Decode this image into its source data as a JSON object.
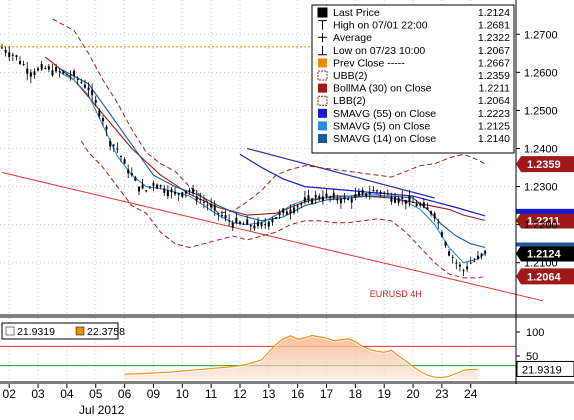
{
  "chart_data": {
    "type": "line",
    "symbol": "EURUSD 4H",
    "x_ticks": [
      "02",
      "03",
      "04",
      "05",
      "06",
      "09",
      "10",
      "11",
      "12",
      "13",
      "16",
      "17",
      "18",
      "19",
      "20",
      "23",
      "24"
    ],
    "x_month_label": "Jul 2012",
    "price_axis": {
      "ticks": [
        "1.2700",
        "1.2600",
        "1.2500",
        "1.2400",
        "1.2300",
        "1.2200",
        "1.2100"
      ],
      "ylim": [
        1.196,
        1.279
      ]
    },
    "osc_axis": {
      "ticks": [
        "100",
        "50"
      ],
      "ylim": [
        0,
        125
      ]
    },
    "legend": [
      {
        "label": "Last Price",
        "value": "1.2124",
        "color": "#000000",
        "icon": "square-icon"
      },
      {
        "label": "High on 07/01 22:00",
        "value": "1.2681",
        "color": "#000000",
        "icon": "high-marker-icon"
      },
      {
        "label": "Average",
        "value": "1.2322",
        "color": "#000000",
        "icon": "average-marker-icon"
      },
      {
        "label": "Low on 07/23 10:00",
        "value": "1.2067",
        "color": "#000000",
        "icon": "low-marker-icon"
      },
      {
        "label": "Prev Close -----",
        "value": "1.2667",
        "color": "#f08c00",
        "icon": "square-icon"
      },
      {
        "label": "UBB(2)",
        "value": "1.2359",
        "color": "#a02020",
        "icon": "dashed-square-icon"
      },
      {
        "label": "BollMA (30) on Close",
        "value": "1.2211",
        "color": "#a01818",
        "icon": "square-icon"
      },
      {
        "label": "LBB(2)",
        "value": "1.2064",
        "color": "#a02020",
        "icon": "dashed-square-icon"
      },
      {
        "label": "SMAVG (55) on Close",
        "value": "1.2223",
        "color": "#1a1ad0",
        "icon": "square-icon"
      },
      {
        "label": "SMAVG (5) on Close",
        "value": "1.2125",
        "color": "#2a8de0",
        "icon": "square-icon"
      },
      {
        "label": "SMAVG (14) on Close",
        "value": "1.2140",
        "color": "#1a5a9a",
        "icon": "square-icon"
      }
    ],
    "price_tags": [
      {
        "value": "1.2359",
        "bg": "#a01818",
        "fg": "#ffffff"
      },
      {
        "value": "1.2211",
        "bg": "#a01818",
        "fg": "#ffffff"
      },
      {
        "value": "1.2124",
        "bg": "#000000",
        "fg": "#ffffff"
      },
      {
        "value": "1.2064",
        "bg": "#a01818",
        "fg": "#ffffff"
      }
    ],
    "osc_legend": [
      {
        "value": "21.9319",
        "color": "#ffffff"
      },
      {
        "value": "22.3758",
        "color": "#f08c00"
      }
    ],
    "osc_tag": "21.9319",
    "prev_close": 1.2667,
    "close_path": [
      [
        0,
        1.2665
      ],
      [
        2,
        1.264
      ],
      [
        4,
        1.26
      ],
      [
        6,
        1.261
      ],
      [
        8,
        1.26
      ],
      [
        10,
        1.259
      ],
      [
        12,
        1.256
      ],
      [
        13,
        1.252
      ],
      [
        14,
        1.248
      ],
      [
        15,
        1.242
      ],
      [
        16,
        1.24
      ],
      [
        17,
        1.236
      ],
      [
        18,
        1.233
      ],
      [
        19,
        1.23
      ],
      [
        20,
        1.229
      ],
      [
        21,
        1.231
      ],
      [
        22,
        1.23
      ],
      [
        24,
        1.228
      ],
      [
        26,
        1.229
      ],
      [
        28,
        1.226
      ],
      [
        30,
        1.223
      ],
      [
        32,
        1.2205
      ],
      [
        34,
        1.22
      ],
      [
        36,
        1.2195
      ],
      [
        38,
        1.222
      ],
      [
        40,
        1.224
      ],
      [
        42,
        1.226
      ],
      [
        44,
        1.2275
      ],
      [
        46,
        1.227
      ],
      [
        48,
        1.2265
      ],
      [
        50,
        1.228
      ],
      [
        52,
        1.229
      ],
      [
        54,
        1.2275
      ],
      [
        56,
        1.2265
      ],
      [
        58,
        1.225
      ],
      [
        60,
        1.223
      ],
      [
        61,
        1.218
      ],
      [
        62,
        1.213
      ],
      [
        63,
        1.21
      ],
      [
        64,
        1.208
      ],
      [
        65,
        1.21
      ],
      [
        66,
        1.211
      ],
      [
        67,
        1.2124
      ]
    ],
    "ubb_path": [
      [
        7,
        1.274
      ],
      [
        10,
        1.271
      ],
      [
        12,
        1.265
      ],
      [
        14,
        1.258
      ],
      [
        16,
        1.252
      ],
      [
        18,
        1.245
      ],
      [
        20,
        1.239
      ],
      [
        22,
        1.236
      ],
      [
        24,
        1.234
      ],
      [
        26,
        1.23
      ],
      [
        28,
        1.227
      ],
      [
        30,
        1.223
      ],
      [
        32,
        1.2235
      ],
      [
        34,
        1.226
      ],
      [
        36,
        1.229
      ],
      [
        38,
        1.233
      ],
      [
        40,
        1.2345
      ],
      [
        42,
        1.2355
      ],
      [
        44,
        1.235
      ],
      [
        46,
        1.2345
      ],
      [
        48,
        1.234
      ],
      [
        50,
        1.2335
      ],
      [
        52,
        1.233
      ],
      [
        54,
        1.2325
      ],
      [
        56,
        1.234
      ],
      [
        58,
        1.2355
      ],
      [
        60,
        1.236
      ],
      [
        62,
        1.2375
      ],
      [
        64,
        1.2385
      ],
      [
        66,
        1.237
      ],
      [
        67,
        1.2359
      ]
    ],
    "lbb_path": [
      [
        11,
        1.242
      ],
      [
        12,
        1.239
      ],
      [
        14,
        1.235
      ],
      [
        16,
        1.23
      ],
      [
        18,
        1.225
      ],
      [
        20,
        1.223
      ],
      [
        22,
        1.218
      ],
      [
        24,
        1.215
      ],
      [
        26,
        1.214
      ],
      [
        28,
        1.215
      ],
      [
        30,
        1.216
      ],
      [
        32,
        1.217
      ],
      [
        34,
        1.216
      ],
      [
        36,
        1.217
      ],
      [
        38,
        1.218
      ],
      [
        40,
        1.22
      ],
      [
        42,
        1.221
      ],
      [
        44,
        1.221
      ],
      [
        46,
        1.2205
      ],
      [
        48,
        1.2205
      ],
      [
        50,
        1.221
      ],
      [
        52,
        1.2215
      ],
      [
        54,
        1.221
      ],
      [
        56,
        1.218
      ],
      [
        58,
        1.214
      ],
      [
        60,
        1.21
      ],
      [
        62,
        1.207
      ],
      [
        64,
        1.206
      ],
      [
        66,
        1.206
      ],
      [
        67,
        1.2064
      ]
    ],
    "bollma_path": [
      [
        6,
        1.264
      ],
      [
        10,
        1.258
      ],
      [
        14,
        1.249
      ],
      [
        18,
        1.24
      ],
      [
        22,
        1.233
      ],
      [
        26,
        1.228
      ],
      [
        30,
        1.2245
      ],
      [
        34,
        1.2225
      ],
      [
        38,
        1.223
      ],
      [
        42,
        1.226
      ],
      [
        46,
        1.2275
      ],
      [
        50,
        1.2275
      ],
      [
        54,
        1.227
      ],
      [
        58,
        1.2255
      ],
      [
        62,
        1.224
      ],
      [
        64,
        1.2225
      ],
      [
        67,
        1.2211
      ]
    ],
    "sma55_path": [
      [
        33,
        1.2385
      ],
      [
        36,
        1.235
      ],
      [
        39,
        1.232
      ],
      [
        42,
        1.23
      ],
      [
        45,
        1.2295
      ],
      [
        48,
        1.229
      ],
      [
        51,
        1.2285
      ],
      [
        54,
        1.228
      ],
      [
        57,
        1.2275
      ],
      [
        60,
        1.226
      ],
      [
        63,
        1.2245
      ],
      [
        67,
        1.2223
      ]
    ],
    "sma14_path": [
      [
        8,
        1.261
      ],
      [
        12,
        1.257
      ],
      [
        15,
        1.249
      ],
      [
        18,
        1.241
      ],
      [
        21,
        1.233
      ],
      [
        24,
        1.23
      ],
      [
        27,
        1.228
      ],
      [
        30,
        1.225
      ],
      [
        33,
        1.2225
      ],
      [
        36,
        1.221
      ],
      [
        39,
        1.222
      ],
      [
        42,
        1.225
      ],
      [
        45,
        1.2265
      ],
      [
        48,
        1.227
      ],
      [
        51,
        1.2275
      ],
      [
        54,
        1.2275
      ],
      [
        57,
        1.227
      ],
      [
        59,
        1.224
      ],
      [
        61,
        1.22
      ],
      [
        63,
        1.217
      ],
      [
        65,
        1.215
      ],
      [
        67,
        1.214
      ]
    ],
    "sma5_path": [
      [
        8,
        1.26
      ],
      [
        10,
        1.258
      ],
      [
        12,
        1.254
      ],
      [
        14,
        1.246
      ],
      [
        16,
        1.238
      ],
      [
        18,
        1.233
      ],
      [
        20,
        1.23
      ],
      [
        22,
        1.2295
      ],
      [
        24,
        1.2285
      ],
      [
        26,
        1.2275
      ],
      [
        28,
        1.225
      ],
      [
        30,
        1.2225
      ],
      [
        32,
        1.2205
      ],
      [
        34,
        1.22
      ],
      [
        36,
        1.2205
      ],
      [
        38,
        1.2225
      ],
      [
        40,
        1.225
      ],
      [
        42,
        1.2265
      ],
      [
        44,
        1.227
      ],
      [
        46,
        1.227
      ],
      [
        48,
        1.2275
      ],
      [
        50,
        1.228
      ],
      [
        52,
        1.228
      ],
      [
        54,
        1.227
      ],
      [
        56,
        1.226
      ],
      [
        58,
        1.224
      ],
      [
        60,
        1.22
      ],
      [
        62,
        1.214
      ],
      [
        64,
        1.21
      ],
      [
        66,
        1.211
      ],
      [
        67,
        1.2125
      ]
    ],
    "trendline": [
      [
        0,
        1.2337
      ],
      [
        75,
        1.2
      ]
    ],
    "trend_short": [
      [
        34,
        1.24
      ],
      [
        60,
        1.227
      ]
    ],
    "osc_series": [
      [
        17,
        12
      ],
      [
        20,
        14
      ],
      [
        23,
        16
      ],
      [
        26,
        20
      ],
      [
        29,
        24
      ],
      [
        32,
        28
      ],
      [
        34,
        33
      ],
      [
        36,
        42
      ],
      [
        37,
        58
      ],
      [
        38,
        74
      ],
      [
        39,
        86
      ],
      [
        40,
        92
      ],
      [
        41,
        85
      ],
      [
        42,
        88
      ],
      [
        43,
        93
      ],
      [
        44,
        90
      ],
      [
        45,
        88
      ],
      [
        46,
        82
      ],
      [
        47,
        84
      ],
      [
        48,
        86
      ],
      [
        49,
        80
      ],
      [
        50,
        70
      ],
      [
        51,
        64
      ],
      [
        52,
        60
      ],
      [
        53,
        58
      ],
      [
        54,
        62
      ],
      [
        55,
        50
      ],
      [
        56,
        40
      ],
      [
        57,
        28
      ],
      [
        58,
        18
      ],
      [
        59,
        10
      ],
      [
        60,
        6
      ],
      [
        61,
        5
      ],
      [
        62,
        8
      ],
      [
        63,
        14
      ],
      [
        64,
        20
      ],
      [
        65,
        22
      ],
      [
        66,
        22
      ]
    ],
    "osc_lines": {
      "upper": 70,
      "lower": 30
    },
    "grid": true
  }
}
